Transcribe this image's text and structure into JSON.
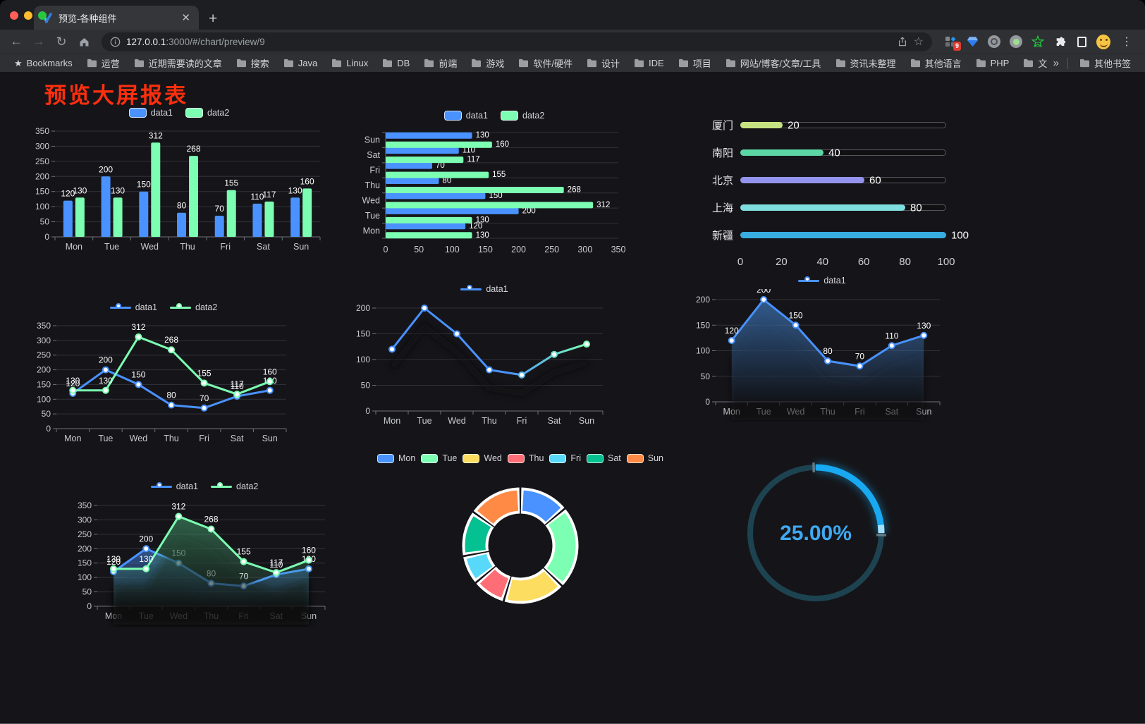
{
  "browser": {
    "tab": {
      "title": "预览-各种组件"
    },
    "url": {
      "host": "127.0.0.1",
      "rest": ":3000/#/chart/preview/9"
    },
    "bookmarks_label": "Bookmarks",
    "bookmarks": [
      "运营",
      "近期需要读的文章",
      "搜索",
      "Java",
      "Linux",
      "DB",
      "前端",
      "游戏",
      "软件/硬件",
      "设计",
      "IDE",
      "项目",
      "网站/博客/文章/工具",
      "资讯未整理",
      "其他语言",
      "PHP",
      "文件服务器"
    ],
    "other_bookmarks": "其他书签",
    "extension_badge": "9"
  },
  "page": {
    "title": "预览大屏报表",
    "title_color": "#ff2f0e",
    "background": "#151519"
  },
  "colors": {
    "series_blue": "#4992ff",
    "series_green": "#7cffb2",
    "axis_line": "#6e7079",
    "split_line": "#31323a",
    "axis_text": "#c9cad1",
    "value_label": "#ffffff"
  },
  "chart_data": [
    {
      "type": "bar",
      "categories": [
        "Mon",
        "Tue",
        "Wed",
        "Thu",
        "Fri",
        "Sat",
        "Sun"
      ],
      "series": [
        {
          "name": "data1",
          "color": "#4992ff",
          "values": [
            120,
            200,
            150,
            80,
            70,
            110,
            130
          ]
        },
        {
          "name": "data2",
          "color": "#7cffb2",
          "values": [
            130,
            130,
            312,
            268,
            155,
            117,
            160
          ]
        }
      ],
      "ylim": [
        0,
        350
      ],
      "ystep": 50,
      "grid": true,
      "legend_position": "top",
      "legend_marker": "rect",
      "labels": true
    },
    {
      "type": "hbar",
      "categories": [
        "Mon",
        "Tue",
        "Wed",
        "Thu",
        "Fri",
        "Sat",
        "Sun"
      ],
      "series": [
        {
          "name": "data1",
          "color": "#4992ff",
          "values": [
            120,
            200,
            150,
            80,
            70,
            110,
            130
          ]
        },
        {
          "name": "data2",
          "color": "#7cffb2",
          "values": [
            130,
            130,
            312,
            268,
            155,
            117,
            160
          ]
        }
      ],
      "xlim": [
        0,
        350
      ],
      "xstep": 50,
      "grid": true,
      "legend_position": "top",
      "legend_marker": "rect",
      "labels": true
    },
    {
      "type": "progress",
      "items": [
        {
          "label": "厦门",
          "value": 20,
          "color": "#c7e381"
        },
        {
          "label": "南阳",
          "value": 40,
          "color": "#5bd6a4"
        },
        {
          "label": "北京",
          "value": 60,
          "color": "#9393ee"
        },
        {
          "label": "上海",
          "value": 80,
          "color": "#7fdfdf"
        },
        {
          "label": "新疆",
          "value": 100,
          "color": "#38ade0"
        }
      ],
      "max": 100,
      "ticks": [
        0,
        20,
        40,
        60,
        80,
        100
      ]
    },
    {
      "type": "line",
      "categories": [
        "Mon",
        "Tue",
        "Wed",
        "Thu",
        "Fri",
        "Sat",
        "Sun"
      ],
      "series": [
        {
          "name": "data1",
          "color": "#4992ff",
          "values": [
            120,
            200,
            150,
            80,
            70,
            110,
            130
          ]
        },
        {
          "name": "data2",
          "color": "#7cffb2",
          "values": [
            130,
            130,
            312,
            268,
            155,
            117,
            160
          ]
        }
      ],
      "ylim": [
        0,
        350
      ],
      "ystep": 50,
      "grid": true,
      "legend_position": "top",
      "legend_marker": "line",
      "labels": true
    },
    {
      "type": "line",
      "categories": [
        "Mon",
        "Tue",
        "Wed",
        "Thu",
        "Fri",
        "Sat",
        "Sun"
      ],
      "series": [
        {
          "name": "data1",
          "color": "#4992ff",
          "gradient": [
            "#4992ff",
            "#7cffb2"
          ],
          "values": [
            120,
            200,
            150,
            80,
            70,
            110,
            130
          ]
        }
      ],
      "ylim": [
        0,
        200
      ],
      "ystep": 50,
      "grid": true,
      "legend_position": "top",
      "legend_marker": "line",
      "labels": false,
      "shadow": true
    },
    {
      "type": "line",
      "categories": [
        "Mon",
        "Tue",
        "Wed",
        "Thu",
        "Fri",
        "Sat",
        "Sun"
      ],
      "series": [
        {
          "name": "data1",
          "color": "#4992ff",
          "area": [
            "rgba(62,120,190,0.70)",
            "rgba(62,120,190,0.03)"
          ],
          "values": [
            120,
            200,
            150,
            80,
            70,
            110,
            130
          ]
        }
      ],
      "ylim": [
        0,
        200
      ],
      "ystep": 50,
      "grid": true,
      "legend_position": "top",
      "legend_marker": "line",
      "labels": true,
      "shadow": true
    },
    {
      "type": "line",
      "categories": [
        "Mon",
        "Tue",
        "Wed",
        "Thu",
        "Fri",
        "Sat",
        "Sun"
      ],
      "series": [
        {
          "name": "data1",
          "color": "#4992ff",
          "area": [
            "rgba(73,146,255,0.50)",
            "rgba(73,146,255,0.02)"
          ],
          "values": [
            120,
            200,
            150,
            80,
            70,
            110,
            130
          ]
        },
        {
          "name": "data2",
          "color": "#7cffb2",
          "area": [
            "rgba(80,190,130,0.45)",
            "rgba(80,190,130,0.02)"
          ],
          "values": [
            130,
            130,
            312,
            268,
            155,
            117,
            160
          ]
        }
      ],
      "ylim": [
        0,
        350
      ],
      "ystep": 50,
      "grid": true,
      "legend_position": "top",
      "legend_marker": "line",
      "labels": true,
      "shadow": true
    },
    {
      "type": "donut",
      "items": [
        {
          "label": "Mon",
          "value": 120,
          "color": "#4992ff"
        },
        {
          "label": "Tue",
          "value": 200,
          "color": "#7cffb2"
        },
        {
          "label": "Wed",
          "value": 150,
          "color": "#fddd60"
        },
        {
          "label": "Thu",
          "value": 80,
          "color": "#ff6e76"
        },
        {
          "label": "Fri",
          "value": 70,
          "color": "#58d9f9"
        },
        {
          "label": "Sat",
          "value": 110,
          "color": "#05c091"
        },
        {
          "label": "Sun",
          "value": 130,
          "color": "#ff8a45"
        }
      ],
      "legend_position": "top",
      "border_color": "#ffffff"
    },
    {
      "type": "gauge",
      "value_text": "25.00%",
      "percent": 25,
      "color": "#18a9f2",
      "track_color": "#1d4350",
      "text_color": "#3fa9f1"
    }
  ]
}
